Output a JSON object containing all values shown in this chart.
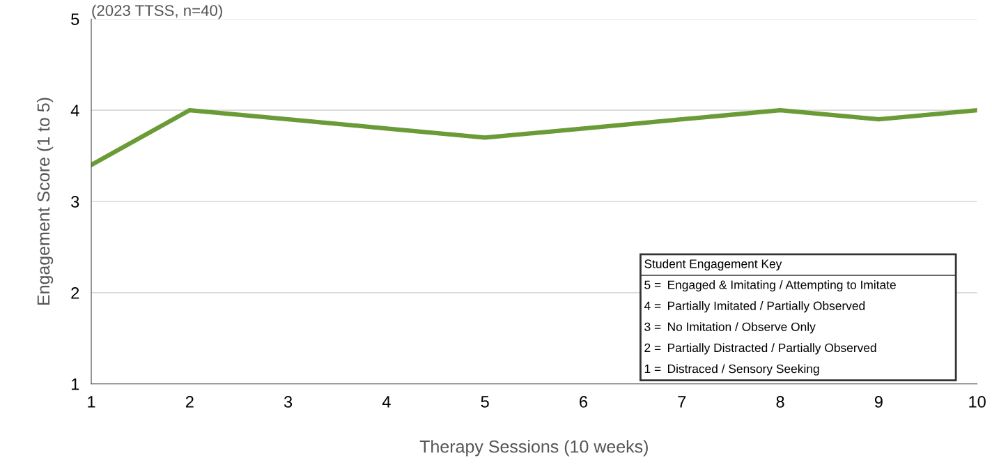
{
  "chart_data": {
    "type": "line",
    "subtitle": "(2023 TTSS, n=40)",
    "xlabel": "Therapy Sessions (10 weeks)",
    "ylabel": "Engagement Score (1 to 5)",
    "x": [
      1,
      2,
      3,
      4,
      5,
      6,
      7,
      8,
      9,
      10
    ],
    "series": [
      {
        "color": "#6b9b37",
        "values": [
          3.4,
          4.0,
          3.9,
          3.8,
          3.7,
          3.8,
          3.9,
          4.0,
          3.9,
          4.0
        ]
      }
    ],
    "xlim": [
      1,
      10
    ],
    "xticks": [
      1,
      2,
      3,
      4,
      5,
      6,
      7,
      8,
      9,
      10
    ],
    "ylim": [
      1,
      5
    ],
    "yticks": [
      1,
      2,
      3,
      4,
      5
    ],
    "grid": "y",
    "marker": "none",
    "line_style": "solid",
    "annotations": [
      "Student Engagement Key",
      "5 =\tEngaged & Imitating / Attempting to Imitate",
      "4 =\tPartially Imitated / Partially Observed",
      "3 =\tNo Imitation / Observe Only",
      "2 =\tPartially Distracted / Partially Observed",
      "1 =\tDistraced / Sensory Seeking"
    ]
  }
}
